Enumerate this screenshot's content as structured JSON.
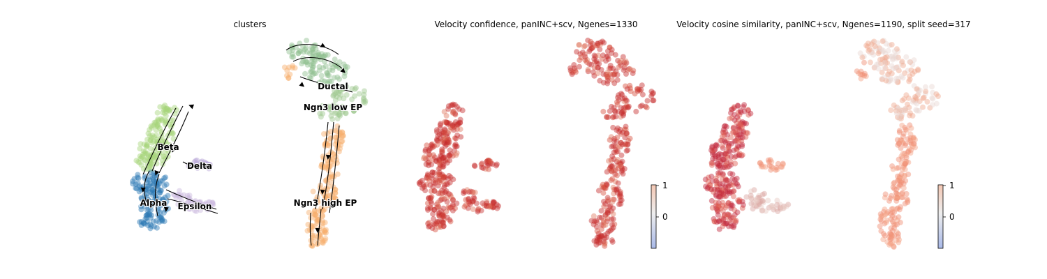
{
  "chart_data": [
    {
      "type": "scatter",
      "title": "clusters",
      "clusters": [
        {
          "name": "Beta",
          "color": "#a6d57a"
        },
        {
          "name": "Delta",
          "color": "#b9a6d6"
        },
        {
          "name": "Alpha",
          "color": "#2a78b4"
        },
        {
          "name": "Epsilon",
          "color": "#c9b8dd"
        },
        {
          "name": "Ductal",
          "color": "#8fbf8f"
        },
        {
          "name": "Ngn3 low EP",
          "color": "#9ec78d"
        },
        {
          "name": "Ngn3 high EP",
          "color": "#f6ae6b"
        }
      ],
      "streamlines": true,
      "axes": "off"
    },
    {
      "type": "scatter",
      "title": "Velocity confidence, panINC+scv, Ngenes=1330",
      "colormap": "coolwarm",
      "colorbar": {
        "ticks": [
          "1",
          "0"
        ]
      },
      "dominant_color": "#c62d2d",
      "axes": "off"
    },
    {
      "type": "scatter",
      "title": "Velocity cosine similarity, panINC+scv, Ngenes=1190, split seed=317",
      "colormap": "coolwarm",
      "colorbar": {
        "ticks": [
          "1",
          "0"
        ]
      },
      "dominant_color": "#ee8a6e",
      "axes": "off"
    }
  ]
}
